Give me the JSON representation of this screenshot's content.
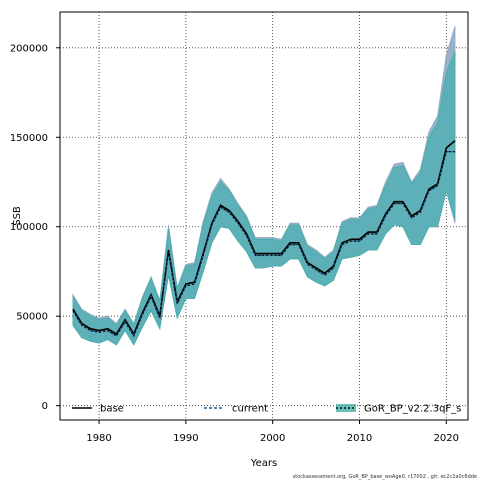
{
  "chart_data": {
    "type": "area",
    "xlabel": "Years",
    "ylabel": "SSB",
    "xlim": [
      1975.5,
      2022.5
    ],
    "ylim": [
      -8000,
      220000
    ],
    "x_ticks": [
      1980,
      1990,
      2000,
      2010,
      2020
    ],
    "y_ticks": [
      0,
      50000,
      100000,
      150000,
      200000
    ],
    "y_tick_labels": [
      "0",
      "50000",
      "100000",
      "150000",
      "200000"
    ],
    "grid": true,
    "legend_position": "bottom",
    "x": [
      1977,
      1978,
      1979,
      1980,
      1981,
      1982,
      1983,
      1984,
      1985,
      1986,
      1987,
      1988,
      1989,
      1990,
      1991,
      1992,
      1993,
      1994,
      1995,
      1996,
      1997,
      1998,
      1999,
      2000,
      2001,
      2002,
      2003,
      2004,
      2005,
      2006,
      2007,
      2008,
      2009,
      2010,
      2011,
      2012,
      2013,
      2014,
      2015,
      2016,
      2017,
      2018,
      2019,
      2020,
      2021
    ],
    "series": [
      {
        "name": "base",
        "color": "#000000",
        "band_color": "#8fa8c4",
        "values": [
          54000,
          46000,
          43000,
          42000,
          43000,
          40000,
          48000,
          40000,
          52000,
          62000,
          50000,
          87000,
          58000,
          68000,
          69000,
          85000,
          102000,
          112000,
          109000,
          103000,
          96000,
          85000,
          85000,
          85000,
          85000,
          91000,
          91000,
          80000,
          77000,
          74000,
          78000,
          91000,
          93000,
          93000,
          97000,
          97000,
          107000,
          114000,
          114000,
          106000,
          109000,
          121000,
          124000,
          144000,
          148000
        ],
        "lower": [
          45000,
          38000,
          36000,
          35000,
          37000,
          34000,
          42000,
          34000,
          44000,
          53000,
          43000,
          73000,
          49000,
          60000,
          60000,
          75000,
          91000,
          100000,
          99000,
          92000,
          86000,
          77000,
          77000,
          78000,
          78000,
          82000,
          82000,
          72000,
          69000,
          67000,
          70000,
          82000,
          83000,
          84000,
          87000,
          87000,
          96000,
          101000,
          100000,
          90000,
          90000,
          100000,
          100000,
          120000,
          102000
        ],
        "upper": [
          62000,
          54000,
          51000,
          49000,
          50000,
          46000,
          54000,
          46000,
          61000,
          72000,
          59000,
          101000,
          66000,
          79000,
          80000,
          103000,
          119000,
          127000,
          121000,
          113000,
          106000,
          94000,
          94000,
          94000,
          93000,
          102000,
          102000,
          90000,
          87000,
          83000,
          87000,
          103000,
          105000,
          105000,
          111000,
          112000,
          125000,
          135000,
          136000,
          125000,
          132000,
          153000,
          162000,
          196000,
          212000
        ]
      },
      {
        "name": "current",
        "color": "#1a5f9a",
        "band_color": "#6aaed6",
        "values": [
          53000,
          45000,
          42000,
          41000,
          42000,
          39000,
          47000,
          39000,
          51000,
          61000,
          49000,
          86000,
          57000,
          67000,
          68000,
          84000,
          101000,
          111000,
          108000,
          102000,
          95000,
          84000,
          84000,
          84000,
          84000,
          90000,
          90000,
          79000,
          76000,
          73000,
          77000,
          90000,
          92000,
          92000,
          96000,
          96000,
          106000,
          113000,
          113000,
          105000,
          108000,
          120000,
          123000,
          142000,
          142000
        ],
        "lower": [
          45000,
          38000,
          36000,
          35000,
          37000,
          34000,
          42000,
          34000,
          44000,
          53000,
          43000,
          73000,
          49000,
          60000,
          60000,
          75000,
          91000,
          100000,
          99000,
          92000,
          86000,
          77000,
          77000,
          78000,
          78000,
          82000,
          82000,
          72000,
          69000,
          67000,
          70000,
          82000,
          83000,
          84000,
          87000,
          87000,
          96000,
          101000,
          100000,
          90000,
          90000,
          100000,
          100000,
          120000,
          104000
        ],
        "upper": [
          61000,
          53000,
          50000,
          48000,
          49000,
          45000,
          53000,
          45000,
          60000,
          71000,
          58000,
          99000,
          65000,
          78000,
          79000,
          101000,
          117000,
          125000,
          120000,
          112000,
          105000,
          93000,
          93000,
          93000,
          92000,
          101000,
          101000,
          89000,
          86000,
          82000,
          86000,
          102000,
          104000,
          104000,
          110000,
          111000,
          123000,
          133000,
          134000,
          124000,
          130000,
          150000,
          158000,
          186000,
          198000
        ]
      },
      {
        "name": "GoR_BP_v2.2.3qF_s",
        "color": "#111111",
        "band_color": "#44b0a4",
        "values": [
          53000,
          45000,
          42000,
          41000,
          42000,
          39000,
          47000,
          39000,
          51000,
          61000,
          49000,
          86000,
          57000,
          67000,
          68000,
          84000,
          101000,
          111000,
          108000,
          102000,
          95000,
          84000,
          84000,
          84000,
          84000,
          90000,
          90000,
          79000,
          76000,
          73000,
          77000,
          90000,
          92000,
          92000,
          96000,
          96000,
          106000,
          113000,
          113000,
          105000,
          108000,
          120000,
          123000,
          142000,
          142000
        ],
        "lower": [
          45000,
          38000,
          36000,
          35000,
          37000,
          34000,
          42000,
          34000,
          44000,
          53000,
          43000,
          73000,
          49000,
          60000,
          60000,
          75000,
          91000,
          100000,
          99000,
          92000,
          86000,
          77000,
          77000,
          78000,
          78000,
          82000,
          82000,
          72000,
          69000,
          67000,
          70000,
          82000,
          83000,
          84000,
          87000,
          87000,
          96000,
          101000,
          100000,
          90000,
          90000,
          100000,
          100000,
          120000,
          104000
        ],
        "upper": [
          61000,
          53000,
          50000,
          48000,
          49000,
          45000,
          53000,
          45000,
          60000,
          71000,
          58000,
          99000,
          65000,
          78000,
          79000,
          101000,
          117000,
          125000,
          120000,
          112000,
          105000,
          93000,
          93000,
          93000,
          92000,
          101000,
          101000,
          89000,
          86000,
          82000,
          86000,
          102000,
          104000,
          104000,
          110000,
          111000,
          123000,
          133000,
          134000,
          124000,
          130000,
          150000,
          158000,
          186000,
          198000
        ]
      }
    ],
    "footnote": "stockassessment.org, GoR_BP_base_woAge0, r17002 , git: ec2c2a0c6dde"
  }
}
